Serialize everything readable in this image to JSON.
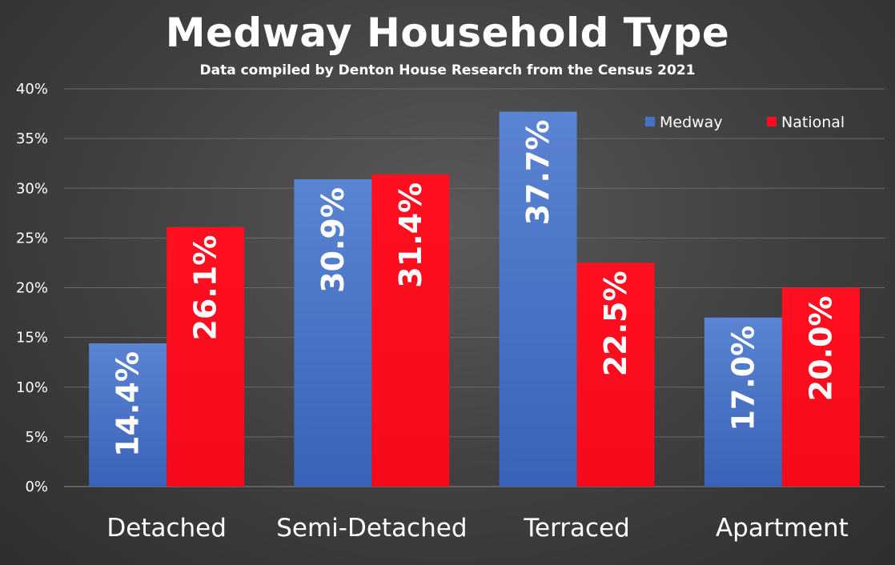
{
  "chart_data": {
    "type": "bar",
    "title": "Medway Household Type",
    "subtitle": "Data compiled by Denton House Research from the Census 2021",
    "categories": [
      "Detached",
      "Semi-Detached",
      "Terraced",
      "Apartment"
    ],
    "series": [
      {
        "name": "Medway",
        "values": [
          14.4,
          30.9,
          37.7,
          17.0
        ],
        "labels": [
          "14.4%",
          "30.9%",
          "37.7%",
          "17.0%"
        ],
        "color": "#4472c4"
      },
      {
        "name": "National",
        "values": [
          26.1,
          31.4,
          22.5,
          20.0
        ],
        "labels": [
          "26.1%",
          "31.4%",
          "22.5%",
          "20.0%"
        ],
        "color": "#ff0d1f"
      }
    ],
    "ylim": [
      0,
      40
    ],
    "yticks": [
      "0%",
      "5%",
      "10%",
      "15%",
      "20%",
      "25%",
      "30%",
      "35%",
      "40%"
    ],
    "grid": true,
    "legend_position": "top-right"
  }
}
